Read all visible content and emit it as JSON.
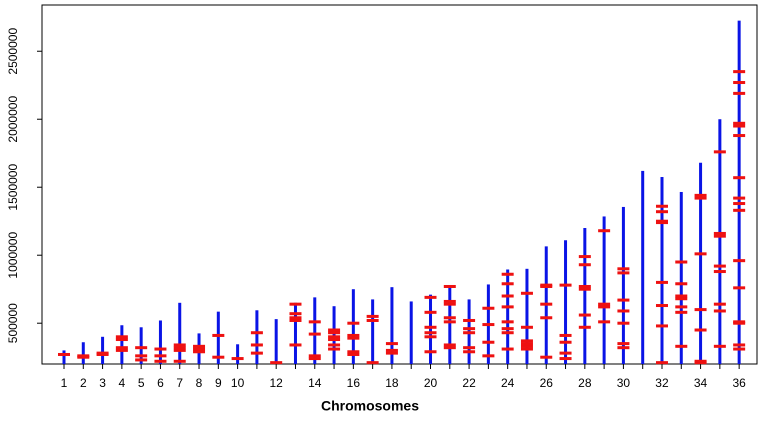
{
  "chart_data": {
    "type": "chromosome-map",
    "x_label": "Chromosomes",
    "categories": [
      "1",
      "2",
      "3",
      "4",
      "5",
      "6",
      "7",
      "8",
      "9",
      "10",
      null,
      "12",
      null,
      "14",
      null,
      "16",
      null,
      "18",
      null,
      "20",
      null,
      "22",
      null,
      "24",
      null,
      "26",
      null,
      "28",
      null,
      "30",
      null,
      "32",
      null,
      "34",
      null,
      "36"
    ],
    "values": [
      300000,
      360000,
      400000,
      485000,
      470000,
      520000,
      650000,
      425000,
      585000,
      345000,
      595000,
      530000,
      650000,
      690000,
      625000,
      750000,
      675000,
      765000,
      660000,
      710000,
      780000,
      675000,
      785000,
      895000,
      900000,
      1065000,
      1110000,
      1200000,
      1285000,
      1355000,
      1620000,
      1575000,
      1465000,
      1680000,
      2000000,
      2725000
    ],
    "markers": [
      [
        270000
      ],
      [
        250000,
        260000
      ],
      [
        270000,
        280000
      ],
      [
        300000,
        320000,
        380000,
        400000
      ],
      [
        230000,
        260000,
        320000
      ],
      [
        220000,
        260000,
        310000
      ],
      [
        220000,
        300000,
        320000,
        340000
      ],
      [
        290000,
        310000,
        330000
      ],
      [
        250000,
        410000
      ],
      [
        240000
      ],
      [
        280000,
        340000,
        430000
      ],
      [
        210000
      ],
      [
        340000,
        520000,
        540000,
        570000,
        640000
      ],
      [
        240000,
        260000,
        420000,
        510000
      ],
      [
        310000,
        340000,
        380000,
        400000,
        430000,
        450000
      ],
      [
        270000,
        290000,
        390000,
        410000,
        500000
      ],
      [
        210000,
        520000,
        550000
      ],
      [
        280000,
        300000,
        350000
      ],
      [],
      [
        290000,
        400000,
        430000,
        470000,
        580000,
        690000
      ],
      [
        320000,
        340000,
        510000,
        540000,
        640000,
        660000,
        770000
      ],
      [
        290000,
        320000,
        430000,
        460000,
        520000
      ],
      [
        260000,
        360000,
        490000,
        610000
      ],
      [
        310000,
        430000,
        460000,
        510000,
        620000,
        700000,
        790000,
        860000
      ],
      [
        310000,
        330000,
        350000,
        370000,
        470000,
        720000
      ],
      [
        250000,
        540000,
        640000,
        770000,
        780000
      ],
      [
        240000,
        280000,
        360000,
        410000,
        780000
      ],
      [
        470000,
        560000,
        750000,
        770000,
        930000,
        990000
      ],
      [
        510000,
        620000,
        640000,
        1180000
      ],
      [
        320000,
        350000,
        500000,
        590000,
        670000,
        870000,
        900000
      ],
      [],
      [
        210000,
        480000,
        630000,
        800000,
        1240000,
        1250000,
        1320000,
        1360000
      ],
      [
        330000,
        580000,
        620000,
        680000,
        700000,
        790000,
        950000
      ],
      [
        210000,
        220000,
        450000,
        600000,
        1010000,
        1420000,
        1440000
      ],
      [
        330000,
        590000,
        640000,
        880000,
        920000,
        1140000,
        1160000,
        1760000
      ],
      [
        310000,
        340000,
        500000,
        510000,
        760000,
        960000,
        1330000,
        1380000,
        1420000,
        1570000,
        1880000,
        1950000,
        1970000,
        2190000,
        2270000,
        2350000
      ]
    ],
    "color": "#0a14e6",
    "marker_color": "#ee1111",
    "ylim": [
      200000,
      2840000
    ],
    "yticks": [
      500000,
      1000000,
      1500000,
      2000000,
      2500000
    ]
  }
}
